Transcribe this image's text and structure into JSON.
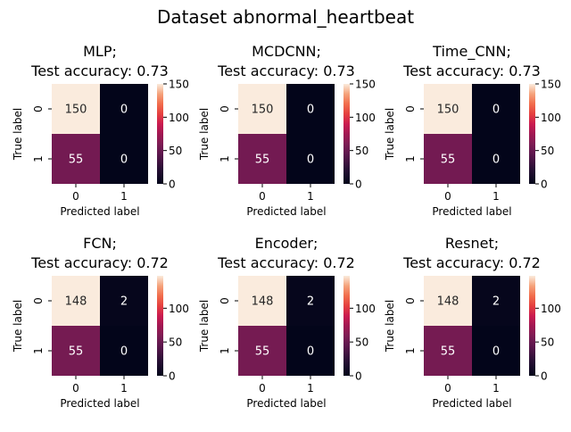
{
  "figure_title": "Dataset abnormal_heartbeat",
  "chart_data": [
    {
      "type": "heatmap",
      "title_line1": "MLP;",
      "title_line2": "Test accuracy: 0.73",
      "xlabel": "Predicted label",
      "ylabel": "True label",
      "x_categories": [
        "0",
        "1"
      ],
      "y_categories": [
        "0",
        "1"
      ],
      "values": [
        [
          150,
          0
        ],
        [
          55,
          0
        ]
      ],
      "colorbar": {
        "vmin": 0,
        "vmax": 150,
        "ticks": [
          0,
          50,
          100,
          150
        ]
      },
      "colormap": "rocket"
    },
    {
      "type": "heatmap",
      "title_line1": "MCDCNN;",
      "title_line2": "Test accuracy: 0.73",
      "xlabel": "Predicted label",
      "ylabel": "True label",
      "x_categories": [
        "0",
        "1"
      ],
      "y_categories": [
        "0",
        "1"
      ],
      "values": [
        [
          150,
          0
        ],
        [
          55,
          0
        ]
      ],
      "colorbar": {
        "vmin": 0,
        "vmax": 150,
        "ticks": [
          0,
          50,
          100,
          150
        ]
      },
      "colormap": "rocket"
    },
    {
      "type": "heatmap",
      "title_line1": "Time_CNN;",
      "title_line2": "Test accuracy: 0.73",
      "xlabel": "Predicted label",
      "ylabel": "True label",
      "x_categories": [
        "0",
        "1"
      ],
      "y_categories": [
        "0",
        "1"
      ],
      "values": [
        [
          150,
          0
        ],
        [
          55,
          0
        ]
      ],
      "colorbar": {
        "vmin": 0,
        "vmax": 150,
        "ticks": [
          0,
          50,
          100,
          150
        ]
      },
      "colormap": "rocket"
    },
    {
      "type": "heatmap",
      "title_line1": "FCN;",
      "title_line2": "Test accuracy: 0.72",
      "xlabel": "Predicted label",
      "ylabel": "True label",
      "x_categories": [
        "0",
        "1"
      ],
      "y_categories": [
        "0",
        "1"
      ],
      "values": [
        [
          148,
          2
        ],
        [
          55,
          0
        ]
      ],
      "colorbar": {
        "vmin": 0,
        "vmax": 148,
        "ticks": [
          0,
          50,
          100
        ]
      },
      "colormap": "rocket"
    },
    {
      "type": "heatmap",
      "title_line1": "Encoder;",
      "title_line2": "Test accuracy: 0.72",
      "xlabel": "Predicted label",
      "ylabel": "True label",
      "x_categories": [
        "0",
        "1"
      ],
      "y_categories": [
        "0",
        "1"
      ],
      "values": [
        [
          148,
          2
        ],
        [
          55,
          0
        ]
      ],
      "colorbar": {
        "vmin": 0,
        "vmax": 148,
        "ticks": [
          0,
          50,
          100
        ]
      },
      "colormap": "rocket"
    },
    {
      "type": "heatmap",
      "title_line1": "Resnet;",
      "title_line2": "Test accuracy: 0.72",
      "xlabel": "Predicted label",
      "ylabel": "True label",
      "x_categories": [
        "0",
        "1"
      ],
      "y_categories": [
        "0",
        "1"
      ],
      "values": [
        [
          148,
          2
        ],
        [
          55,
          0
        ]
      ],
      "colorbar": {
        "vmin": 0,
        "vmax": 148,
        "ticks": [
          0,
          50,
          100
        ]
      },
      "colormap": "rocket"
    }
  ]
}
